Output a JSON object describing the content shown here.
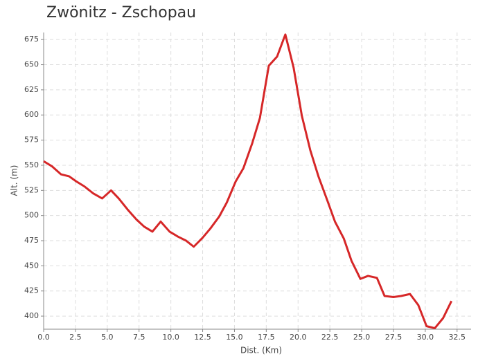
{
  "chart_data": {
    "type": "line",
    "title": "Zwönitz - Zschopau",
    "x_label": "Dist. (Km)",
    "y_label": "Alt. (m)",
    "x": [
      0,
      0.65,
      1.36,
      2.0,
      2.56,
      3.2,
      3.9,
      4.6,
      5.3,
      5.9,
      6.6,
      7.3,
      7.9,
      8.55,
      9.2,
      9.9,
      10.56,
      11.2,
      11.8,
      12.5,
      13.1,
      13.8,
      14.4,
      15.1,
      15.7,
      16.4,
      17.0,
      17.7,
      18.35,
      19.0,
      19.65,
      20.3,
      20.96,
      21.6,
      22.3,
      22.9,
      23.6,
      24.2,
      24.9,
      25.5,
      26.2,
      26.8,
      27.5,
      28.1,
      28.8,
      29.45,
      30.1,
      30.75,
      31.4,
      32.06
    ],
    "series": [
      {
        "name": "Altitude",
        "color": "#d62728",
        "values": [
          554,
          549,
          541,
          539,
          534,
          529,
          522,
          517,
          525,
          517,
          506,
          496,
          489,
          484,
          494,
          484,
          479,
          475,
          469,
          478,
          487,
          499,
          513,
          534,
          547,
          572,
          597,
          649,
          658,
          680,
          647,
          599,
          565,
          539,
          515,
          494,
          477,
          455,
          437,
          440,
          438,
          420,
          419,
          420,
          422,
          411,
          390,
          388,
          398,
          415
        ]
      }
    ],
    "xlim": [
      0,
      33.6
    ],
    "ylim": [
      387,
      682
    ],
    "xticks": [
      {
        "value": 0,
        "label": "0.0"
      },
      2.5,
      {
        "value": 5,
        "label": "5.0"
      },
      7.5,
      {
        "value": 10,
        "label": "10.0"
      },
      12.5,
      {
        "value": 15,
        "label": "15.0"
      },
      17.5,
      {
        "value": 20,
        "label": "20.0"
      },
      22.5,
      {
        "value": 25,
        "label": "25.0"
      },
      27.5,
      {
        "value": 30,
        "label": "30.0"
      },
      32.5
    ],
    "yticks": [
      400,
      425,
      450,
      475,
      500,
      525,
      550,
      575,
      600,
      625,
      650,
      675
    ],
    "grid": true
  }
}
